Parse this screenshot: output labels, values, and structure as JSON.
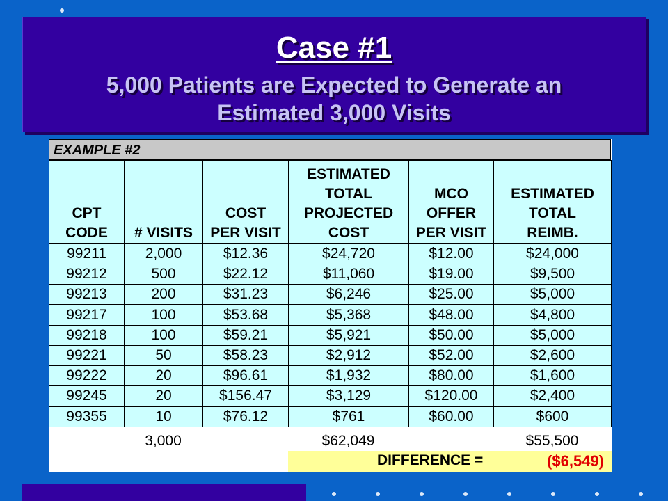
{
  "slide": {
    "title": "Case #1",
    "subtitle_line1": "5,000 Patients are Expected to Generate an",
    "subtitle_line2": "Estimated 3,000 Visits"
  },
  "table": {
    "example_label": "EXAMPLE #2",
    "headers": [
      [
        "CPT",
        "CODE"
      ],
      [
        "# VISITS"
      ],
      [
        "COST",
        "PER VISIT"
      ],
      [
        "ESTIMATED",
        "TOTAL",
        "PROJECTED",
        "COST"
      ],
      [
        "MCO",
        "OFFER",
        "PER VISIT"
      ],
      [
        "ESTIMATED",
        "TOTAL",
        "REIMB."
      ]
    ],
    "rows": [
      [
        "99211",
        "2,000",
        "$12.36",
        "$24,720",
        "$12.00",
        "$24,000"
      ],
      [
        "99212",
        "500",
        "$22.12",
        "$11,060",
        "$19.00",
        "$9,500"
      ],
      [
        "99213",
        "200",
        "$31.23",
        "$6,246",
        "$25.00",
        "$5,000"
      ],
      [
        "99217",
        "100",
        "$53.68",
        "$5,368",
        "$48.00",
        "$4,800"
      ],
      [
        "99218",
        "100",
        "$59.21",
        "$5,921",
        "$50.00",
        "$5,000"
      ],
      [
        "99221",
        "50",
        "$58.23",
        "$2,912",
        "$52.00",
        "$2,600"
      ],
      [
        "99222",
        "20",
        "$96.61",
        "$1,932",
        "$80.00",
        "$1,600"
      ],
      [
        "99245",
        "20",
        "$156.47",
        "$3,129",
        "$120.00",
        "$2,400"
      ],
      [
        "99355",
        "10",
        "$76.12",
        "$761",
        "$60.00",
        "$600"
      ]
    ],
    "totals": {
      "visits": "3,000",
      "projected_cost": "$62,049",
      "reimbursement": "$55,500"
    },
    "difference_label": "DIFFERENCE =",
    "difference_value": "($6,549)"
  },
  "colors": {
    "background": "#0a63c9",
    "banner": "#3300a0",
    "table_fill": "#ccffff",
    "difference_fill": "#ffff99",
    "difference_text": "#e00000"
  }
}
